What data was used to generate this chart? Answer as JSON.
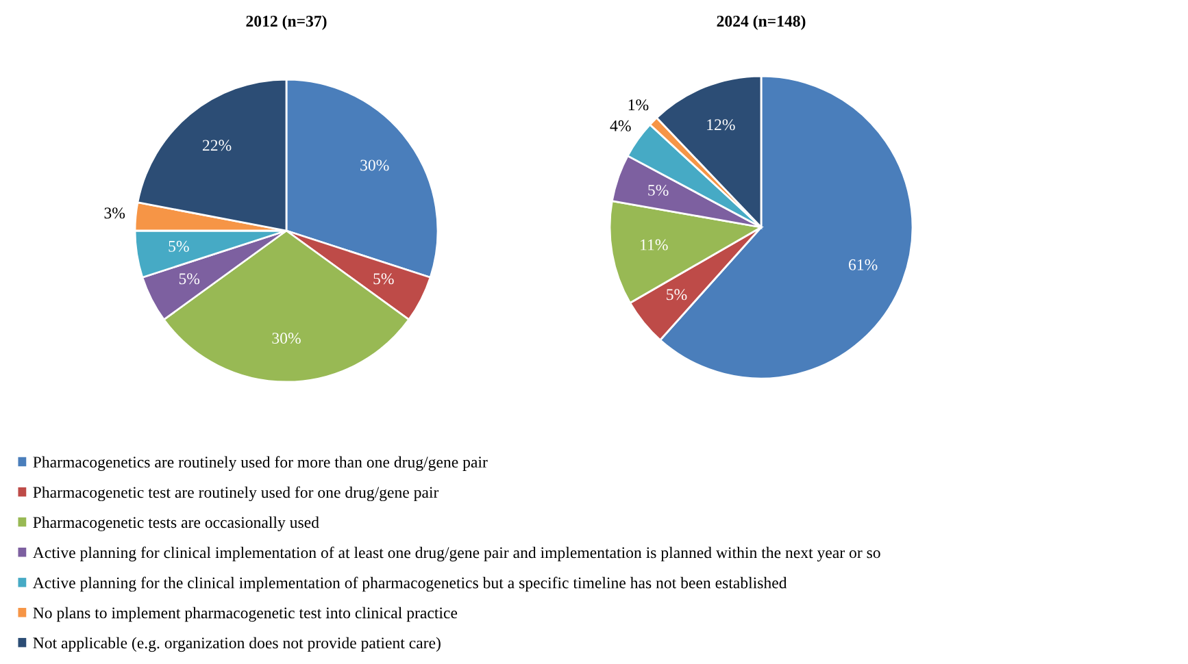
{
  "chart_data": [
    {
      "type": "pie",
      "title": "2012 (n=37)",
      "categories": [
        "Pharmacogenetics are routinely used for more than one drug/gene pair",
        "Pharmacogenetic test are routinely used for one drug/gene pair",
        "Pharmacogenetic tests are occasionally used",
        "Active planning for clinical implementation of at least one drug/gene pair and implementation is planned within the next year or so",
        "Active planning for the clinical implementation of pharmacogenetics but a specific timeline has not been established",
        "No plans to implement pharmacogenetic test into clinical practice",
        "Not applicable (e.g. organization does not provide patient care)"
      ],
      "values": [
        30,
        5,
        30,
        5,
        5,
        3,
        22
      ],
      "value_labels": [
        "30%",
        "5%",
        "30%",
        "5%",
        "5%",
        "3%",
        "22%"
      ],
      "colors": [
        "#4a7ebb",
        "#be4b48",
        "#98b954",
        "#7d60a0",
        "#46aac5",
        "#f69546",
        "#2c4d75"
      ],
      "legend": "bottom"
    },
    {
      "type": "pie",
      "title": "2024 (n=148)",
      "categories": [
        null,
        null,
        null,
        null,
        null,
        null,
        null
      ],
      "values": [
        61,
        5,
        11,
        5,
        4,
        1,
        12
      ],
      "value_labels": [
        "61%",
        "5%",
        "11%",
        "5%",
        "4%",
        "1%",
        "12%"
      ],
      "colors": [
        "#4a7ebb",
        "#be4b48",
        "#98b954",
        "#7d60a0",
        "#46aac5",
        "#f69546",
        "#2c4d75"
      ]
    }
  ]
}
